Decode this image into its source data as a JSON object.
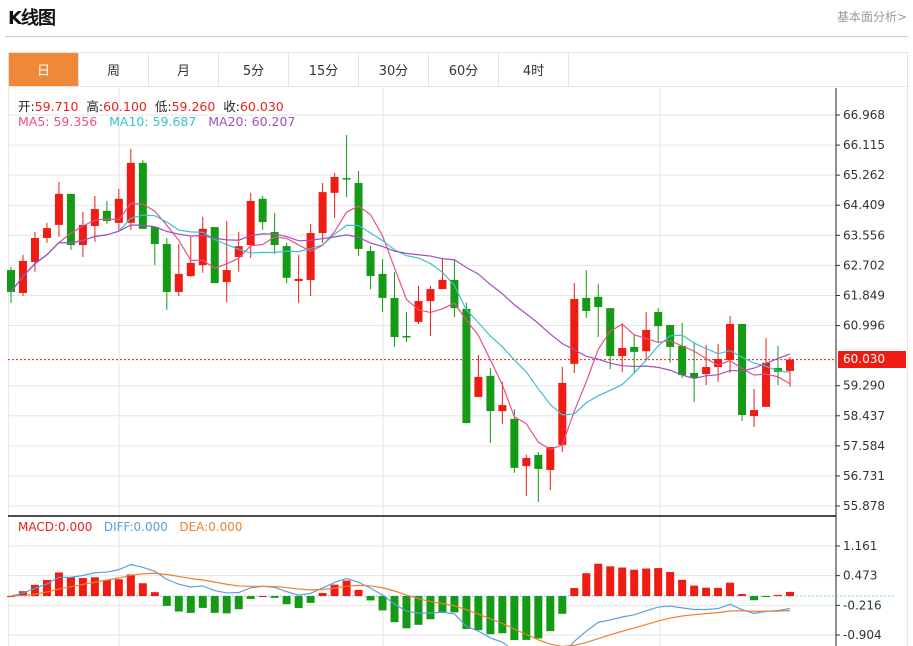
{
  "header": {
    "title": "K线图",
    "fundamental_link": "基本面分析>"
  },
  "tabs": [
    {
      "label": "日",
      "active": true
    },
    {
      "label": "周"
    },
    {
      "label": "月"
    },
    {
      "label": "5分"
    },
    {
      "label": "15分"
    },
    {
      "label": "30分"
    },
    {
      "label": "60分"
    },
    {
      "label": "4时"
    }
  ],
  "ohlc_legend": {
    "open_label": "开:",
    "open": "59.710",
    "high_label": "高:",
    "high": "60.100",
    "low_label": "低:",
    "low": "59.260",
    "close_label": "收:",
    "close": "60.030"
  },
  "ma_legend": {
    "ma5": "MA5: 59.356",
    "ma10": "MA10: 59.687",
    "ma20": "MA20: 60.207"
  },
  "macd_legend": {
    "macd": "MACD:0.000",
    "diff": "DIFF:0.000",
    "dea": "DEA:0.000"
  },
  "current_price": "60.030",
  "colors": {
    "up": "#ee1c12",
    "down": "#149a14",
    "ma5": "#e8508a",
    "ma10": "#3cc0d0",
    "ma20": "#a050c0",
    "diff": "#5aa0e0",
    "dea": "#f08030",
    "active_tab": "#f0883a"
  },
  "chart_data": {
    "type": "candlestick",
    "price_axis": {
      "ticks": [
        "66.968",
        "66.115",
        "65.262",
        "64.409",
        "63.556",
        "62.702",
        "61.849",
        "60.996",
        "59.290",
        "58.437",
        "57.584",
        "56.731",
        "55.878"
      ],
      "range": [
        55.878,
        66.968
      ]
    },
    "macd_axis": {
      "ticks": [
        "1.161",
        "0.473",
        "-0.216",
        "-0.904"
      ],
      "range": [
        -0.904,
        1.161
      ]
    },
    "grid": true,
    "candles_ohlc": [
      [
        62.57,
        62.66,
        61.64,
        61.95
      ],
      [
        61.92,
        63.0,
        61.83,
        62.83
      ],
      [
        62.8,
        63.65,
        62.52,
        63.48
      ],
      [
        63.48,
        63.91,
        63.34,
        63.76
      ],
      [
        63.85,
        65.07,
        63.51,
        64.73
      ],
      [
        64.73,
        64.73,
        63.14,
        63.28
      ],
      [
        63.28,
        64.22,
        62.94,
        63.85
      ],
      [
        63.82,
        64.67,
        63.37,
        64.3
      ],
      [
        64.25,
        64.53,
        63.88,
        63.96
      ],
      [
        63.91,
        64.87,
        63.71,
        64.59
      ],
      [
        63.91,
        66.0,
        63.71,
        65.61
      ],
      [
        65.61,
        65.69,
        63.74,
        63.74
      ],
      [
        63.79,
        63.79,
        62.71,
        63.31
      ],
      [
        63.31,
        63.48,
        61.44,
        61.95
      ],
      [
        61.95,
        63.31,
        61.83,
        62.46
      ],
      [
        62.4,
        63.51,
        62.37,
        62.77
      ],
      [
        62.71,
        64.08,
        62.49,
        63.74
      ],
      [
        63.79,
        63.79,
        62.2,
        62.2
      ],
      [
        62.23,
        63.96,
        61.66,
        62.57
      ],
      [
        62.94,
        63.65,
        62.52,
        63.25
      ],
      [
        63.28,
        64.76,
        62.91,
        64.53
      ],
      [
        64.59,
        64.67,
        63.71,
        63.93
      ],
      [
        63.65,
        64.19,
        63.03,
        63.28
      ],
      [
        63.25,
        63.34,
        62.2,
        62.35
      ],
      [
        62.26,
        63.0,
        61.64,
        62.32
      ],
      [
        62.29,
        63.88,
        61.83,
        63.62
      ],
      [
        63.62,
        65.04,
        63.34,
        64.78
      ],
      [
        64.76,
        65.32,
        64.05,
        65.21
      ],
      [
        65.18,
        66.4,
        64.64,
        65.15
      ],
      [
        65.04,
        65.38,
        62.97,
        63.17
      ],
      [
        63.11,
        63.25,
        62.03,
        62.4
      ],
      [
        62.46,
        62.88,
        61.38,
        61.78
      ],
      [
        61.78,
        62.52,
        60.39,
        60.67
      ],
      [
        60.7,
        61.38,
        60.53,
        60.67
      ],
      [
        61.1,
        62.12,
        61.04,
        61.69
      ],
      [
        61.69,
        62.12,
        60.7,
        62.03
      ],
      [
        62.03,
        62.91,
        62.03,
        62.29
      ],
      [
        62.29,
        62.88,
        61.24,
        61.49
      ],
      [
        61.47,
        61.64,
        58.23,
        58.23
      ],
      [
        58.97,
        60.16,
        58.97,
        59.54
      ],
      [
        59.57,
        59.79,
        57.67,
        58.57
      ],
      [
        58.57,
        59.4,
        58.21,
        58.74
      ],
      [
        58.35,
        58.63,
        56.82,
        56.96
      ],
      [
        57.01,
        57.33,
        56.16,
        57.24
      ],
      [
        57.33,
        57.41,
        55.99,
        56.93
      ],
      [
        56.9,
        57.55,
        56.33,
        57.55
      ],
      [
        57.61,
        59.82,
        57.41,
        59.37
      ],
      [
        59.91,
        62.2,
        59.65,
        61.75
      ],
      [
        61.78,
        62.57,
        61.21,
        61.41
      ],
      [
        61.81,
        62.18,
        60.67,
        61.52
      ],
      [
        61.49,
        61.49,
        59.76,
        60.13
      ],
      [
        60.13,
        61.07,
        59.68,
        60.36
      ],
      [
        60.39,
        60.76,
        59.65,
        60.25
      ],
      [
        60.27,
        61.38,
        60.02,
        60.87
      ],
      [
        61.38,
        61.49,
        60.53,
        60.98
      ],
      [
        61.01,
        61.01,
        59.94,
        60.39
      ],
      [
        60.42,
        61.07,
        59.51,
        59.59
      ],
      [
        59.65,
        60.53,
        58.83,
        59.51
      ],
      [
        59.62,
        60.45,
        59.31,
        59.82
      ],
      [
        59.82,
        60.47,
        59.4,
        60.05
      ],
      [
        60.02,
        61.27,
        59.65,
        61.04
      ],
      [
        61.04,
        61.04,
        58.29,
        58.46
      ],
      [
        58.43,
        59.2,
        58.12,
        58.6
      ],
      [
        58.69,
        60.64,
        58.69,
        59.94
      ],
      [
        59.79,
        60.42,
        59.31,
        59.68
      ],
      [
        59.71,
        60.1,
        59.26,
        60.03
      ]
    ]
  }
}
